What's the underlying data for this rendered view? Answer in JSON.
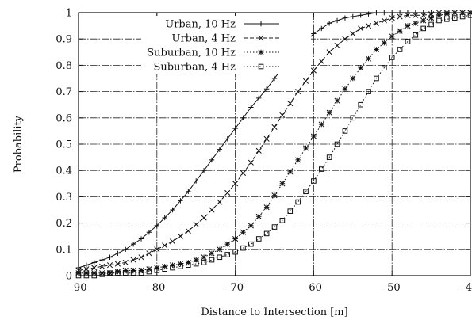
{
  "chart_data": {
    "type": "line",
    "title": "",
    "xlabel": "Distance to Intersection [m]",
    "ylabel": "Probability",
    "xlim": [
      -90,
      -40
    ],
    "ylim": [
      0,
      1
    ],
    "xticks": [
      -90,
      -80,
      -70,
      -60,
      -50,
      -40
    ],
    "xtick_labels": [
      "-90",
      "-80",
      "-70",
      "-60",
      "-50",
      "-40"
    ],
    "yticks": [
      0,
      0.1,
      0.2,
      0.3,
      0.4,
      0.5,
      0.6,
      0.7,
      0.8,
      0.9,
      1
    ],
    "ytick_labels": [
      "0",
      "0.1",
      "0.2",
      "0.3",
      "0.4",
      "0.5",
      "0.6",
      "0.7",
      "0.8",
      "0.9",
      "1"
    ],
    "grid": true,
    "legend_position": "top-right",
    "series": [
      {
        "name": "Urban, 10 Hz",
        "marker": "plus",
        "dash": "solid",
        "x": [
          -90,
          -88,
          -86,
          -84,
          -82,
          -80,
          -78,
          -76,
          -74,
          -72,
          -70,
          -68,
          -66,
          -64,
          -62,
          -60,
          -58,
          -56,
          -54,
          -52,
          -50,
          -48,
          -46,
          -44,
          -42,
          -40
        ],
        "y": [
          0.03,
          0.05,
          0.07,
          0.1,
          0.14,
          0.19,
          0.25,
          0.32,
          0.4,
          0.48,
          0.56,
          0.64,
          0.71,
          0.79,
          0.86,
          0.92,
          0.96,
          0.98,
          0.99,
          1.0,
          1.0,
          1.0,
          1.0,
          1.0,
          1.0,
          1.0
        ]
      },
      {
        "name": "Urban, 4 Hz",
        "marker": "x",
        "dash": "dashed",
        "x": [
          -90,
          -88,
          -86,
          -84,
          -82,
          -80,
          -78,
          -76,
          -74,
          -72,
          -70,
          -68,
          -66,
          -64,
          -62,
          -60,
          -58,
          -56,
          -54,
          -52,
          -50,
          -48,
          -46,
          -44,
          -42,
          -40
        ],
        "y": [
          0.02,
          0.03,
          0.04,
          0.05,
          0.07,
          0.1,
          0.13,
          0.17,
          0.22,
          0.28,
          0.35,
          0.43,
          0.52,
          0.61,
          0.7,
          0.78,
          0.85,
          0.9,
          0.94,
          0.96,
          0.98,
          0.99,
          0.99,
          1.0,
          1.0,
          1.0
        ]
      },
      {
        "name": "Suburban, 10 Hz",
        "marker": "asterisk",
        "dash": "dotted",
        "x": [
          -90,
          -88,
          -86,
          -84,
          -82,
          -80,
          -78,
          -76,
          -74,
          -72,
          -70,
          -68,
          -66,
          -64,
          -62,
          -60,
          -58,
          -56,
          -54,
          -52,
          -50,
          -48,
          -46,
          -44,
          -42,
          -40
        ],
        "y": [
          0.01,
          0.01,
          0.01,
          0.02,
          0.02,
          0.03,
          0.04,
          0.05,
          0.07,
          0.1,
          0.14,
          0.19,
          0.26,
          0.35,
          0.44,
          0.53,
          0.62,
          0.71,
          0.79,
          0.86,
          0.91,
          0.95,
          0.97,
          0.99,
          1.0,
          1.0
        ]
      },
      {
        "name": "Suburban, 4 Hz",
        "marker": "square",
        "dash": "dotted",
        "x": [
          -90,
          -88,
          -86,
          -84,
          -82,
          -80,
          -78,
          -76,
          -74,
          -72,
          -70,
          -68,
          -66,
          -64,
          -62,
          -60,
          -58,
          -56,
          -54,
          -52,
          -50,
          -48,
          -46,
          -44,
          -42,
          -40
        ],
        "y": [
          0.0,
          0.0,
          0.01,
          0.01,
          0.01,
          0.02,
          0.03,
          0.04,
          0.05,
          0.07,
          0.09,
          0.12,
          0.16,
          0.21,
          0.28,
          0.36,
          0.45,
          0.55,
          0.65,
          0.75,
          0.83,
          0.89,
          0.94,
          0.97,
          0.98,
          0.99
        ]
      }
    ]
  }
}
